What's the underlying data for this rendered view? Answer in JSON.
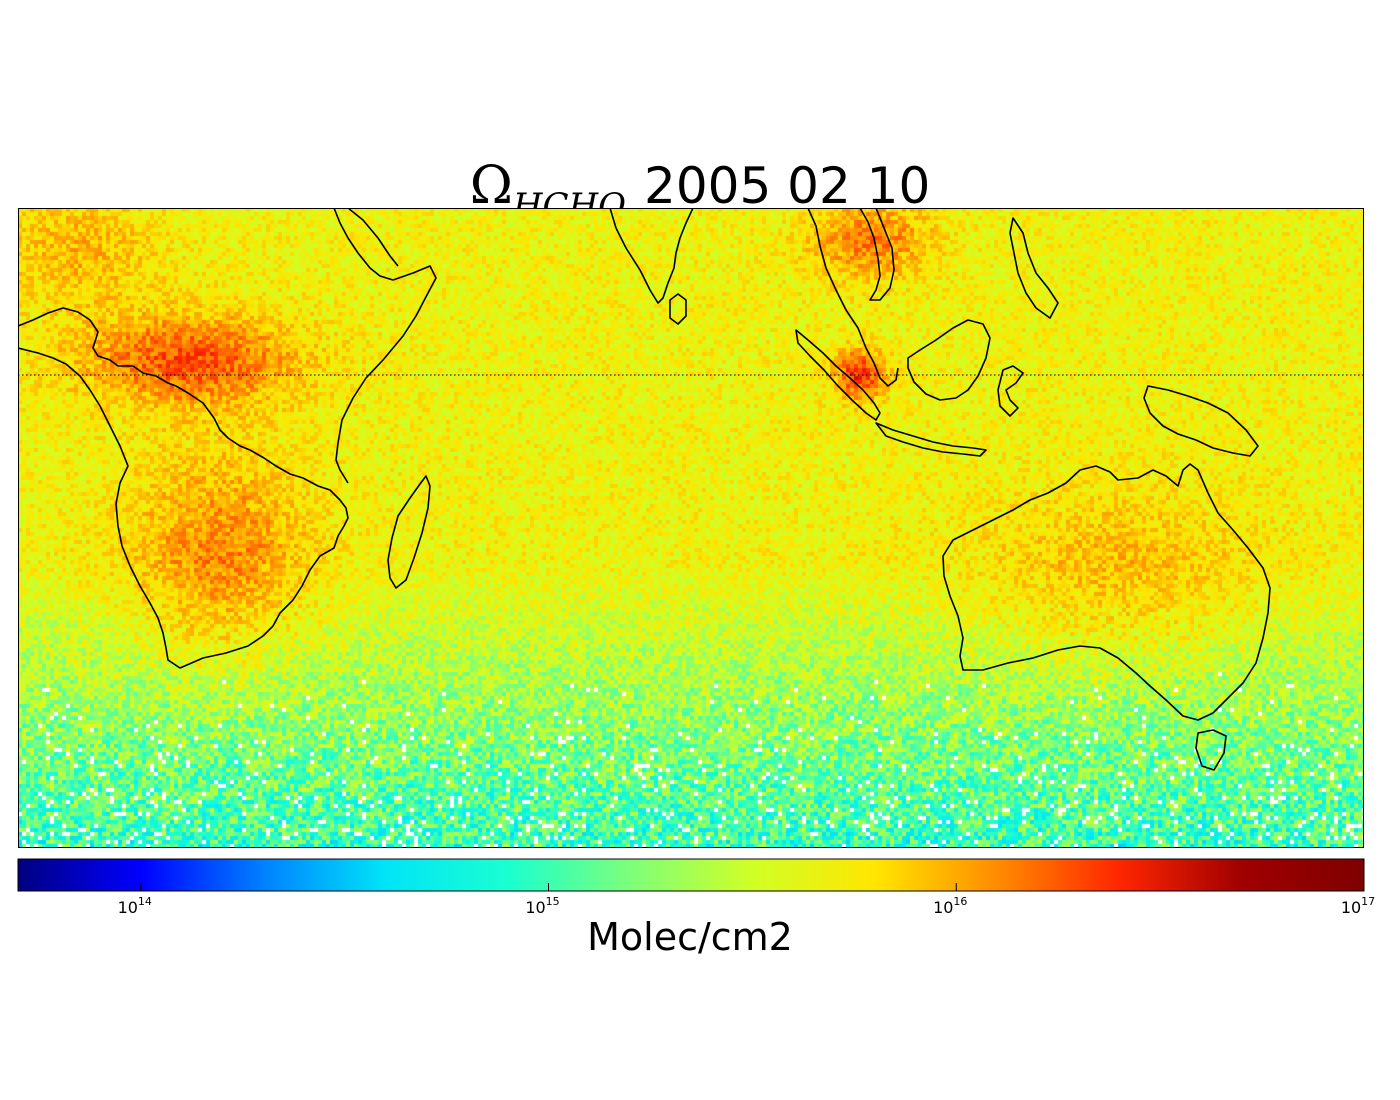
{
  "title": {
    "symbol": "Ω",
    "subscript": "HCHO",
    "date": "2005 02 10"
  },
  "map": {
    "projection": "plate-carree",
    "lon_range": [
      -20,
      170
    ],
    "lat_range": [
      -60,
      30
    ],
    "equator_line": "dotted",
    "variable": "HCHO vertical column",
    "colormap": "jet",
    "scale": "log",
    "regions_elevated": [
      "Central Africa",
      "Southern Africa",
      "Indochina",
      "Sumatra",
      "Northern Australia"
    ],
    "regions_low": [
      "Southern Ocean"
    ]
  },
  "colorbar": {
    "label": "Molec/cm2",
    "range": [
      50000000000000,
      100000000000000000
    ],
    "ticks": [
      {
        "base": "10",
        "exp": "14",
        "value": 100000000000000
      },
      {
        "base": "10",
        "exp": "15",
        "value": 1000000000000000
      },
      {
        "base": "10",
        "exp": "16",
        "value": 10000000000000000
      },
      {
        "base": "10",
        "exp": "17",
        "value": 100000000000000000
      }
    ],
    "colors": [
      "#000080",
      "#0000ff",
      "#0080ff",
      "#00e4f8",
      "#1affd0",
      "#7dff7a",
      "#d0ff26",
      "#ffe600",
      "#ff8c00",
      "#ff2600",
      "#a00000",
      "#7f0000"
    ]
  }
}
